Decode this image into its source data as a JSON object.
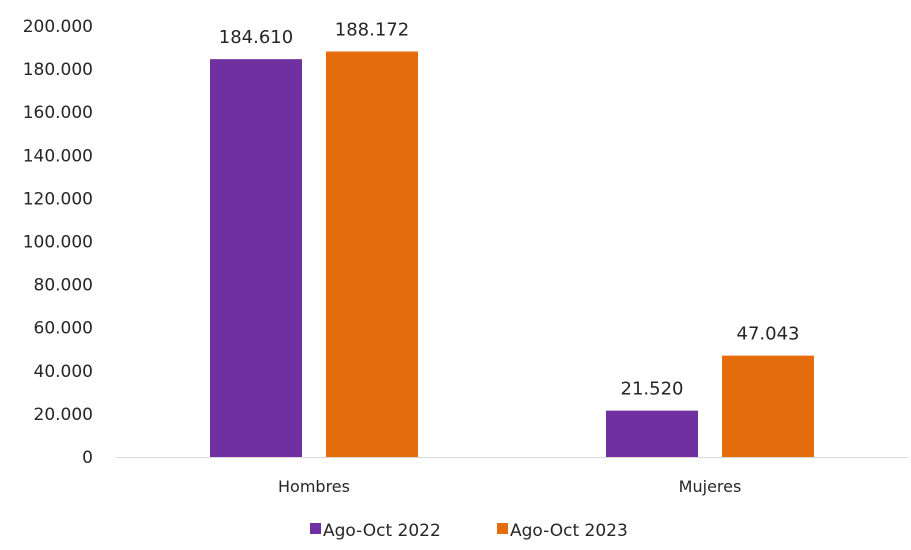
{
  "chart_data": {
    "type": "bar",
    "categories": [
      "Hombres",
      "Mujeres"
    ],
    "series": [
      {
        "name": "Ago-Oct 2022",
        "values": [
          184610,
          21520
        ],
        "labels": [
          "184.610",
          "21.520"
        ],
        "color": "#7030a0"
      },
      {
        "name": "Ago-Oct 2023",
        "values": [
          188172,
          47043
        ],
        "labels": [
          "188.172",
          "47.043"
        ],
        "color": "#e46c0a"
      }
    ],
    "ylim": [
      0,
      200000
    ],
    "yticks": [
      0,
      20000,
      40000,
      60000,
      80000,
      100000,
      120000,
      140000,
      160000,
      180000,
      200000
    ],
    "ytick_labels": [
      "0",
      "20.000",
      "40.000",
      "60.000",
      "80.000",
      "100.000",
      "120.000",
      "140.000",
      "160.000",
      "180.000",
      "200.000"
    ],
    "grid": false,
    "legend_position": "bottom",
    "title": "",
    "xlabel": "",
    "ylabel": ""
  }
}
